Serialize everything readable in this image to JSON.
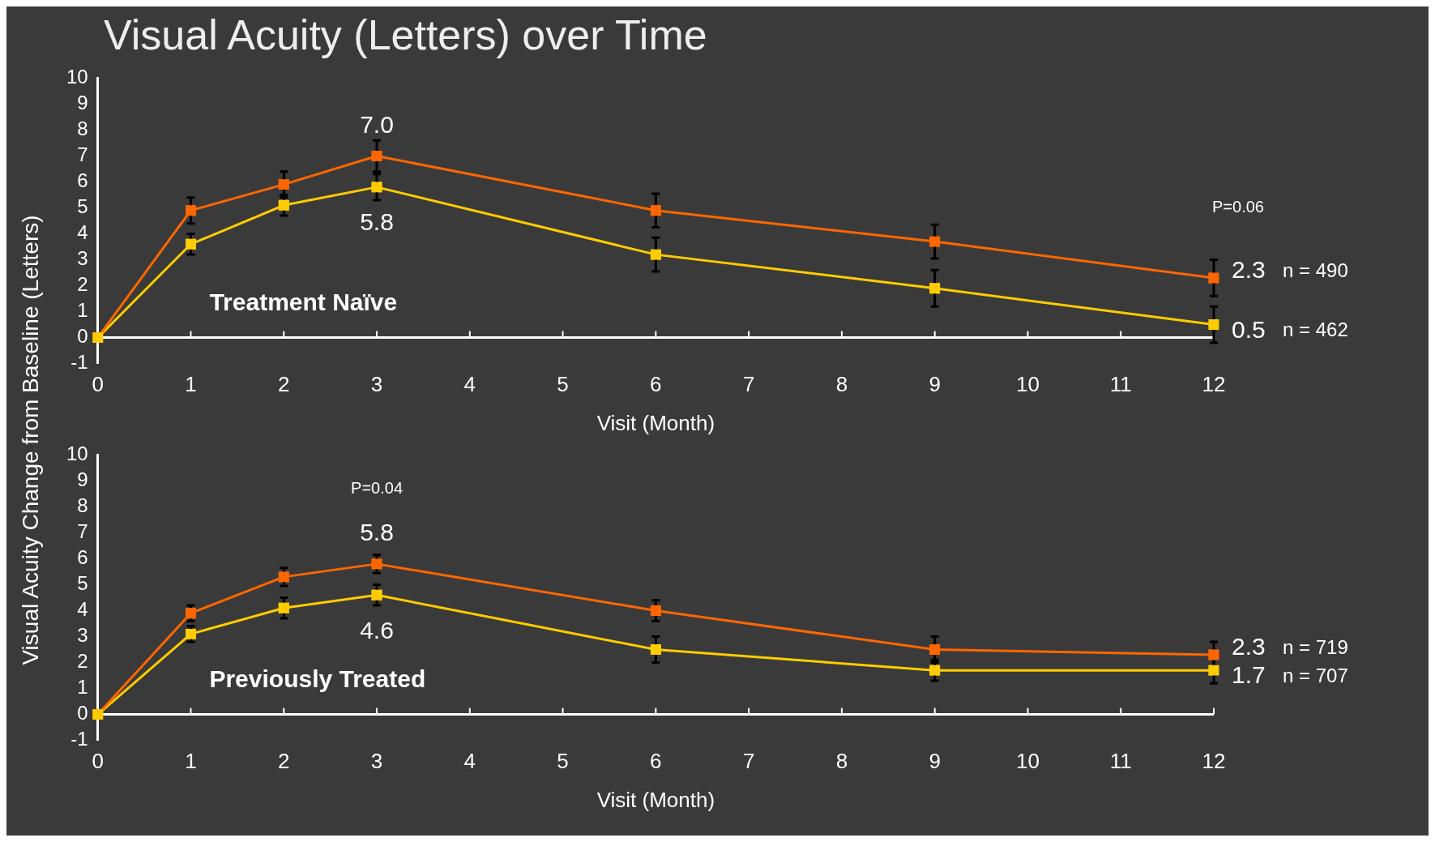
{
  "chart_data": [
    {
      "type": "line",
      "title": "Visual Acuity (Letters) over Time",
      "subtitle": "Treatment Naïve",
      "xlabel": "Visit (Month)",
      "ylabel": "Visual Acuity Change from Baseline (Letters)",
      "x": [
        0,
        1,
        2,
        3,
        6,
        9,
        12
      ],
      "series": [
        {
          "color": "#ff6600",
          "values": [
            0,
            4.9,
            5.9,
            7.0,
            4.9,
            3.7,
            2.3
          ],
          "errors": [
            null,
            0.5,
            0.5,
            0.6,
            0.65,
            0.65,
            0.7
          ],
          "value_labels": [
            null,
            null,
            null,
            "7.0",
            null,
            null,
            "2.3"
          ]
        },
        {
          "color": "#ffcc00",
          "values": [
            0,
            3.6,
            5.1,
            5.8,
            3.2,
            1.9,
            0.5
          ],
          "errors": [
            null,
            0.4,
            0.4,
            0.5,
            0.65,
            0.7,
            0.7
          ],
          "value_labels": [
            null,
            null,
            null,
            "5.8",
            null,
            null,
            "0.5"
          ]
        }
      ],
      "annotations": [
        "P=0.06",
        "n = 490",
        "n = 462"
      ],
      "xlim": [
        0,
        12
      ],
      "xticks": [
        0,
        1,
        2,
        3,
        4,
        5,
        6,
        7,
        8,
        9,
        10,
        11,
        12
      ],
      "ylim": [
        -1,
        10
      ],
      "yticks": [
        -1,
        0,
        1,
        2,
        3,
        4,
        5,
        6,
        7,
        8,
        9,
        10
      ],
      "grid": false,
      "legend": false,
      "marker": "square",
      "line_style": "solid"
    },
    {
      "type": "line",
      "subtitle": "Previously Treated",
      "xlabel": "Visit (Month)",
      "x": [
        0,
        1,
        2,
        3,
        6,
        9,
        12
      ],
      "series": [
        {
          "color": "#ff6600",
          "values": [
            0,
            3.9,
            5.3,
            5.8,
            4.0,
            2.5,
            2.3
          ],
          "errors": [
            null,
            0.3,
            0.35,
            0.35,
            0.4,
            0.5,
            0.5
          ],
          "value_labels": [
            null,
            null,
            null,
            "5.8",
            null,
            null,
            "2.3"
          ]
        },
        {
          "color": "#ffcc00",
          "values": [
            0,
            3.1,
            4.1,
            4.6,
            2.5,
            1.7,
            1.7
          ],
          "errors": [
            null,
            0.3,
            0.4,
            0.4,
            0.5,
            0.4,
            0.5
          ],
          "value_labels": [
            null,
            null,
            null,
            "4.6",
            null,
            null,
            "1.7"
          ]
        }
      ],
      "annotations": [
        "P=0.04",
        "n = 719",
        "n = 707"
      ],
      "xlim": [
        0,
        12
      ],
      "xticks": [
        0,
        1,
        2,
        3,
        4,
        5,
        6,
        7,
        8,
        9,
        10,
        11,
        12
      ],
      "ylim": [
        -1,
        10
      ],
      "yticks": [
        -1,
        0,
        1,
        2,
        3,
        4,
        5,
        6,
        7,
        8,
        9,
        10
      ],
      "grid": false,
      "legend": false,
      "marker": "square",
      "line_style": "solid"
    }
  ]
}
